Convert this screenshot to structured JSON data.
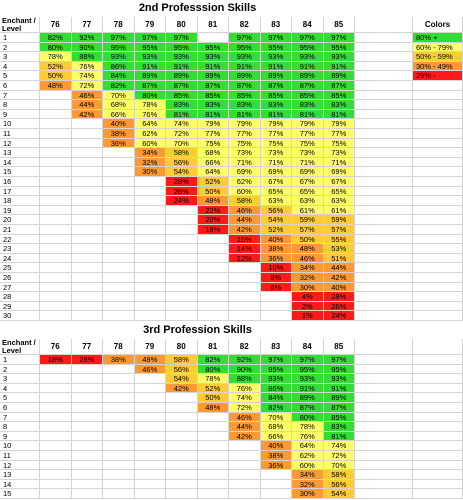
{
  "tables": [
    {
      "title": "2nd Professsion Skills",
      "header": [
        "Enchant / Level",
        "76",
        "77",
        "78",
        "79",
        "80",
        "81",
        "82",
        "83",
        "84",
        "85"
      ],
      "rows": [
        [
          "1",
          "82%",
          "92%",
          "97%",
          "97%",
          "97%",
          null,
          "97%",
          "97%",
          "97%",
          "97%"
        ],
        [
          "2",
          "80%",
          "90%",
          "95%",
          "95%",
          "95%",
          "95%",
          "95%",
          "95%",
          "95%",
          "95%"
        ],
        [
          "3",
          "78%",
          "88%",
          "93%",
          "93%",
          "93%",
          "93%",
          "93%",
          "93%",
          "93%",
          "93%"
        ],
        [
          "4",
          "52%",
          "76%",
          "86%",
          "91%",
          "91%",
          "91%",
          "91%",
          "91%",
          "91%",
          "91%"
        ],
        [
          "5",
          "50%",
          "74%",
          "84%",
          "89%",
          "89%",
          "89%",
          "89%",
          "89%",
          "89%",
          "89%"
        ],
        [
          "6",
          "48%",
          "72%",
          "82%",
          "87%",
          "87%",
          "87%",
          "87%",
          "87%",
          "87%",
          "87%"
        ],
        [
          "7",
          null,
          "46%",
          "70%",
          "80%",
          "85%",
          "85%",
          "85%",
          "85%",
          "85%",
          "85%"
        ],
        [
          "8",
          null,
          "44%",
          "68%",
          "78%",
          "83%",
          "83%",
          "83%",
          "83%",
          "83%",
          "83%"
        ],
        [
          "9",
          null,
          "42%",
          "66%",
          "76%",
          "81%",
          "81%",
          "81%",
          "81%",
          "81%",
          "81%"
        ],
        [
          "10",
          null,
          null,
          "40%",
          "64%",
          "74%",
          "79%",
          "79%",
          "79%",
          "79%",
          "79%"
        ],
        [
          "11",
          null,
          null,
          "38%",
          "62%",
          "72%",
          "77%",
          "77%",
          "77%",
          "77%",
          "77%"
        ],
        [
          "12",
          null,
          null,
          "36%",
          "60%",
          "70%",
          "75%",
          "75%",
          "75%",
          "75%",
          "75%"
        ],
        [
          "13",
          null,
          null,
          null,
          "34%",
          "58%",
          "68%",
          "73%",
          "73%",
          "73%",
          "73%"
        ],
        [
          "14",
          null,
          null,
          null,
          "32%",
          "56%",
          "66%",
          "71%",
          "71%",
          "71%",
          "71%"
        ],
        [
          "15",
          null,
          null,
          null,
          "30%",
          "54%",
          "64%",
          "69%",
          "69%",
          "69%",
          "69%"
        ],
        [
          "16",
          null,
          null,
          null,
          null,
          "28%",
          "52%",
          "62%",
          "67%",
          "67%",
          "67%"
        ],
        [
          "17",
          null,
          null,
          null,
          null,
          "26%",
          "50%",
          "60%",
          "65%",
          "65%",
          "65%"
        ],
        [
          "18",
          null,
          null,
          null,
          null,
          "24%",
          "48%",
          "58%",
          "63%",
          "63%",
          "63%"
        ],
        [
          "19",
          null,
          null,
          null,
          null,
          null,
          "22%",
          "46%",
          "56%",
          "61%",
          "61%"
        ],
        [
          "20",
          null,
          null,
          null,
          null,
          null,
          "20%",
          "44%",
          "54%",
          "59%",
          "59%"
        ],
        [
          "21",
          null,
          null,
          null,
          null,
          null,
          "18%",
          "42%",
          "52%",
          "57%",
          "57%"
        ],
        [
          "22",
          null,
          null,
          null,
          null,
          null,
          null,
          "16%",
          "40%",
          "50%",
          "55%"
        ],
        [
          "23",
          null,
          null,
          null,
          null,
          null,
          null,
          "14%",
          "38%",
          "48%",
          "53%"
        ],
        [
          "24",
          null,
          null,
          null,
          null,
          null,
          null,
          "12%",
          "36%",
          "46%",
          "51%"
        ],
        [
          "25",
          null,
          null,
          null,
          null,
          null,
          null,
          null,
          "10%",
          "34%",
          "44%"
        ],
        [
          "26",
          null,
          null,
          null,
          null,
          null,
          null,
          null,
          "8%",
          "32%",
          "42%"
        ],
        [
          "27",
          null,
          null,
          null,
          null,
          null,
          null,
          null,
          "6%",
          "30%",
          "40%"
        ],
        [
          "28",
          null,
          null,
          null,
          null,
          null,
          null,
          null,
          null,
          "4%",
          "28%"
        ],
        [
          "29",
          null,
          null,
          null,
          null,
          null,
          null,
          null,
          null,
          "2%",
          "26%"
        ],
        [
          "30",
          null,
          null,
          null,
          null,
          null,
          null,
          null,
          null,
          "1%",
          "24%"
        ]
      ]
    },
    {
      "title": "3rd Profession Skills",
      "header": [
        "Enchant / Level",
        "76",
        "77",
        "78",
        "79",
        "80",
        "81",
        "82",
        "83",
        "84",
        "85"
      ],
      "rows": [
        [
          "1",
          "18%",
          "28%",
          "38%",
          "48%",
          "58%",
          "82%",
          "92%",
          "97%",
          "97%",
          "97%"
        ],
        [
          "2",
          null,
          null,
          null,
          "46%",
          "56%",
          "80%",
          "90%",
          "95%",
          "95%",
          "95%"
        ],
        [
          "3",
          null,
          null,
          null,
          null,
          "54%",
          "78%",
          "88%",
          "93%",
          "93%",
          "93%"
        ],
        [
          "4",
          null,
          null,
          null,
          null,
          "42%",
          "52%",
          "76%",
          "86%",
          "91%",
          "91%"
        ],
        [
          "5",
          null,
          null,
          null,
          null,
          null,
          "50%",
          "74%",
          "84%",
          "89%",
          "89%"
        ],
        [
          "6",
          null,
          null,
          null,
          null,
          null,
          "48%",
          "72%",
          "82%",
          "87%",
          "87%"
        ],
        [
          "7",
          null,
          null,
          null,
          null,
          null,
          null,
          "46%",
          "70%",
          "80%",
          "85%"
        ],
        [
          "8",
          null,
          null,
          null,
          null,
          null,
          null,
          "44%",
          "68%",
          "78%",
          "83%"
        ],
        [
          "9",
          null,
          null,
          null,
          null,
          null,
          null,
          "42%",
          "66%",
          "76%",
          "81%"
        ],
        [
          "10",
          null,
          null,
          null,
          null,
          null,
          null,
          null,
          "40%",
          "64%",
          "74%"
        ],
        [
          "11",
          null,
          null,
          null,
          null,
          null,
          null,
          null,
          "38%",
          "62%",
          "72%"
        ],
        [
          "12",
          null,
          null,
          null,
          null,
          null,
          null,
          null,
          "36%",
          "60%",
          "70%"
        ],
        [
          "13",
          null,
          null,
          null,
          null,
          null,
          null,
          null,
          null,
          "34%",
          "58%"
        ],
        [
          "14",
          null,
          null,
          null,
          null,
          null,
          null,
          null,
          null,
          "32%",
          "56%"
        ],
        [
          "15",
          null,
          null,
          null,
          null,
          null,
          null,
          null,
          null,
          "30%",
          "54%"
        ]
      ]
    }
  ],
  "legend": {
    "title": "Colors",
    "items": [
      {
        "label": "80% +",
        "color": "#33dd33"
      },
      {
        "label": "60% - 79%",
        "color": "#ffff66"
      },
      {
        "label": "50% - 59%",
        "color": "#ffcc33"
      },
      {
        "label": "30% - 49%",
        "color": "#ff9933"
      },
      {
        "label": "29% -",
        "color": "#ff1a1a"
      }
    ]
  }
}
